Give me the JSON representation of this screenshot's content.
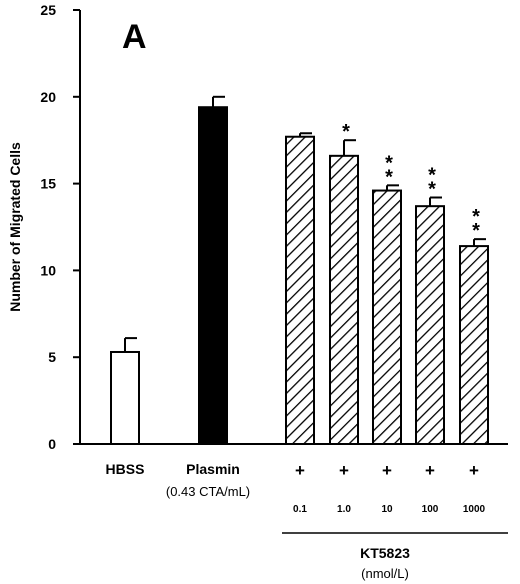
{
  "chart_data": {
    "type": "bar",
    "panel_label": "A",
    "ylabel": "Number of Migrated Cells",
    "xlabel": "",
    "ylim": [
      0,
      25
    ],
    "yticks": [
      "0",
      "5",
      "10",
      "15",
      "20",
      "25"
    ],
    "grid": false,
    "categories": [
      "HBSS",
      "Plasmin",
      "0.1",
      "1.0",
      "10",
      "100",
      "1000"
    ],
    "values": [
      5.3,
      19.4,
      17.7,
      16.6,
      14.6,
      13.7,
      11.4
    ],
    "errors": [
      0.8,
      0.6,
      0.2,
      0.9,
      0.3,
      0.5,
      0.4
    ],
    "fills": [
      "white",
      "black",
      "hatched",
      "hatched",
      "hatched",
      "hatched",
      "hatched"
    ],
    "significance": [
      "",
      "",
      "",
      "*",
      "**",
      "**",
      "**"
    ],
    "plasmin_sublabel": "(0.43 CTA/mL)",
    "plus_sign": "+",
    "group_label": "KT5823",
    "group_unit": "(nmol/L)"
  },
  "colors": {
    "ink": "#000000",
    "background": "#ffffff"
  }
}
